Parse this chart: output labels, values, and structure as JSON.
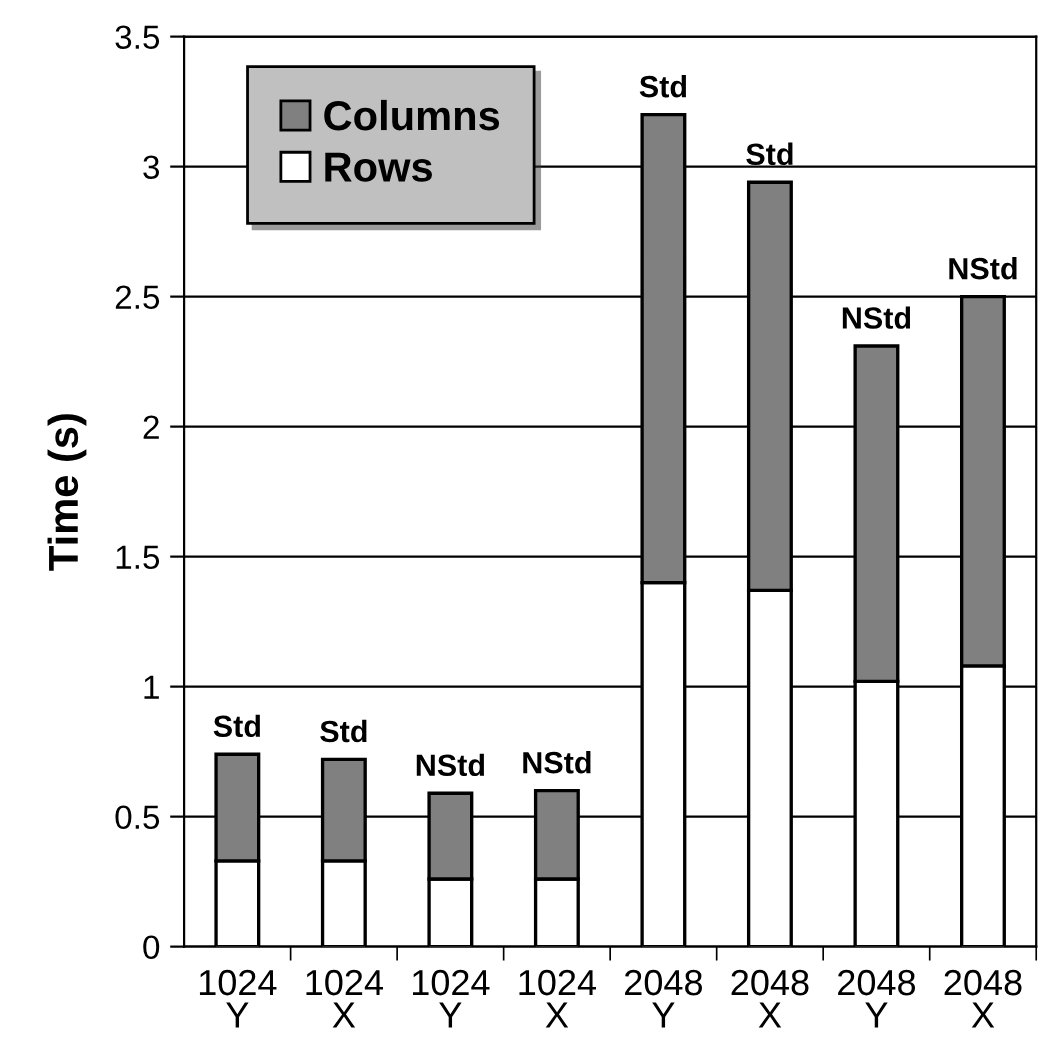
{
  "chart_data": {
    "type": "bar",
    "stacked": true,
    "ylabel": "Time (s)",
    "categories": [
      "1024\nY",
      "1024\nX",
      "1024\nY",
      "1024\nX",
      "2048\nY",
      "2048\nX",
      "2048\nY",
      "2048\nX"
    ],
    "series": [
      {
        "name": "Rows",
        "color": "#ffffff",
        "values": [
          0.33,
          0.33,
          0.26,
          0.26,
          1.4,
          1.37,
          1.02,
          1.08
        ]
      },
      {
        "name": "Columns",
        "color": "#808080",
        "values": [
          0.41,
          0.39,
          0.33,
          0.34,
          1.8,
          1.57,
          1.29,
          1.42
        ],
        "value_labels": [
          "Std",
          "Std",
          "NStd",
          "NStd",
          "Std",
          "Std",
          "NStd",
          "NStd"
        ]
      }
    ],
    "ylim": [
      0,
      3.5
    ],
    "yticks": [
      0,
      0.5,
      1,
      1.5,
      2,
      2.5,
      3,
      3.5
    ],
    "grid": "y",
    "legend": "top left"
  }
}
